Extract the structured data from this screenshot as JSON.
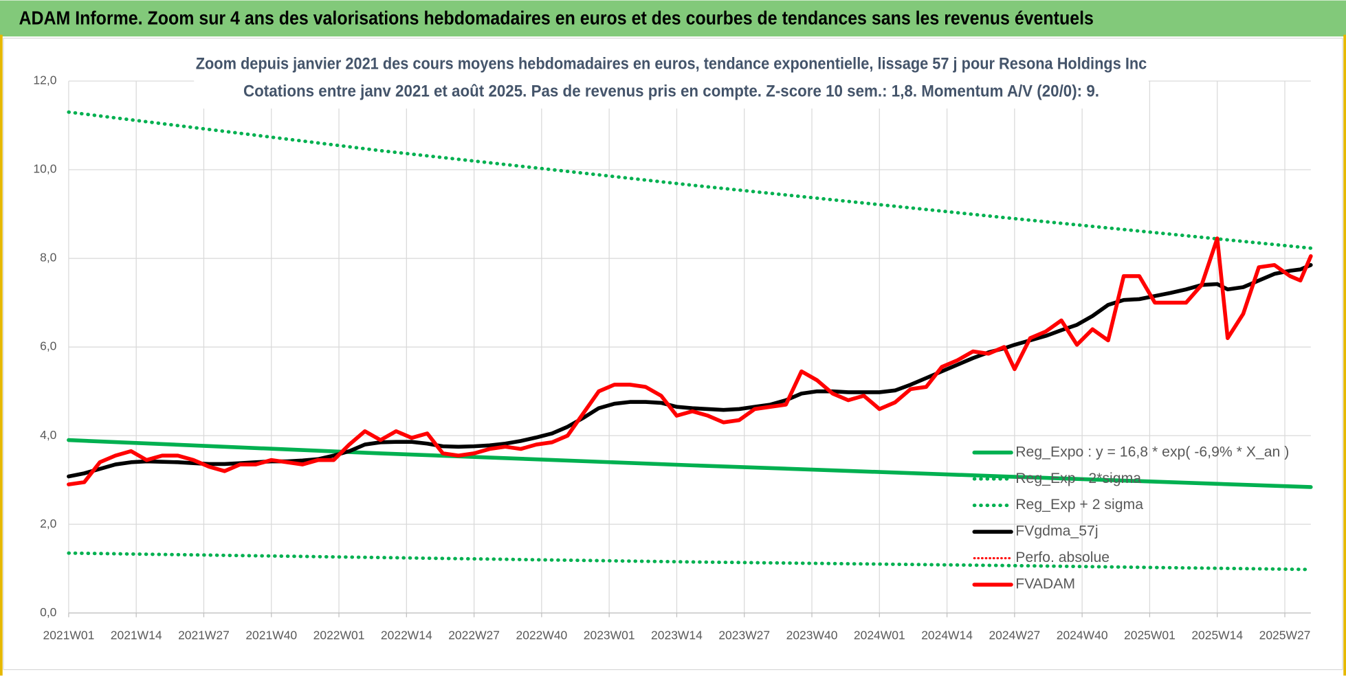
{
  "header": {
    "title": "ADAM Informe. Zoom sur 4 ans des valorisations hebdomadaires en euros et des courbes de tendances sans les revenus éventuels"
  },
  "chart_data": {
    "type": "line",
    "title": "Zoom depuis janvier 2021 des cours moyens hebdomadaires en euros, tendance exponentielle, lissage 57 j pour Resona Holdings Inc",
    "subtitle": "Cotations entre janv 2021 et août 2025.  Pas de revenus pris en compte. Z-score 10 sem.: 1,8. Momentum A/V (20/0): 9.",
    "x": [
      0,
      3,
      6,
      9,
      12,
      15,
      18,
      21,
      24,
      27,
      30,
      33,
      36,
      39,
      42,
      45,
      48,
      51,
      54,
      57,
      60,
      63,
      66,
      69,
      72,
      75,
      78,
      81,
      84,
      87,
      90,
      93,
      96,
      99,
      102,
      105,
      108,
      111,
      114,
      117,
      120,
      123,
      126,
      129,
      132,
      135,
      138,
      141,
      144,
      147,
      150,
      153,
      156,
      159,
      162,
      165,
      168,
      171,
      174,
      177,
      180,
      182,
      185,
      188,
      191,
      194,
      197,
      200,
      203,
      206,
      209,
      212,
      215,
      218,
      221,
      223,
      226,
      229,
      232,
      235,
      237,
      239
    ],
    "xlim": [
      0,
      239
    ],
    "xticks": [
      {
        "value": 0,
        "label": "2021W01"
      },
      {
        "value": 13,
        "label": "2021W14"
      },
      {
        "value": 26,
        "label": "2021W27"
      },
      {
        "value": 39,
        "label": "2021W40"
      },
      {
        "value": 52,
        "label": "2022W01"
      },
      {
        "value": 65,
        "label": "2022W14"
      },
      {
        "value": 78,
        "label": "2022W27"
      },
      {
        "value": 91,
        "label": "2022W40"
      },
      {
        "value": 104,
        "label": "2023W01"
      },
      {
        "value": 117,
        "label": "2023W14"
      },
      {
        "value": 130,
        "label": "2023W27"
      },
      {
        "value": 143,
        "label": "2023W40"
      },
      {
        "value": 156,
        "label": "2024W01"
      },
      {
        "value": 169,
        "label": "2024W14"
      },
      {
        "value": 182,
        "label": "2024W27"
      },
      {
        "value": 195,
        "label": "2024W40"
      },
      {
        "value": 208,
        "label": "2025W01"
      },
      {
        "value": 221,
        "label": "2025W14"
      },
      {
        "value": 234,
        "label": "2025W27"
      }
    ],
    "ylim": [
      0,
      12
    ],
    "yticks": [
      {
        "value": 0,
        "label": "0,0"
      },
      {
        "value": 2,
        "label": "2,0"
      },
      {
        "value": 4,
        "label": "4,0"
      },
      {
        "value": 6,
        "label": "6,0"
      },
      {
        "value": 8,
        "label": "8,0"
      },
      {
        "value": 10,
        "label": "10,0"
      },
      {
        "value": 12,
        "label": "12,0"
      }
    ],
    "grid": true,
    "legend": "lower right",
    "series": [
      {
        "name": "Reg_Expo : y = 16,8 * exp( -6,9% *  X_an )",
        "color": "#00b050",
        "style": "solid",
        "x": [
          0,
          60,
          120,
          180,
          239
        ],
        "values": [
          3.9,
          3.6,
          3.33,
          3.08,
          2.84
        ]
      },
      {
        "name": "Reg_Exp - 2*sigma",
        "color": "#00b050",
        "style": "dotted",
        "x": [
          0,
          60,
          120,
          180,
          239
        ],
        "values": [
          1.35,
          1.25,
          1.15,
          1.07,
          0.98
        ]
      },
      {
        "name": "Reg_Exp + 2 sigma",
        "color": "#00b050",
        "style": "dotted",
        "x": [
          0,
          60,
          120,
          180,
          239
        ],
        "values": [
          11.3,
          10.43,
          9.65,
          8.92,
          8.23
        ]
      },
      {
        "name": "FVgdma_57j",
        "color": "#000000",
        "style": "solid",
        "values": [
          3.08,
          3.15,
          3.25,
          3.35,
          3.4,
          3.42,
          3.41,
          3.4,
          3.38,
          3.36,
          3.36,
          3.38,
          3.4,
          3.42,
          3.42,
          3.44,
          3.47,
          3.55,
          3.65,
          3.8,
          3.85,
          3.86,
          3.86,
          3.82,
          3.76,
          3.75,
          3.76,
          3.78,
          3.82,
          3.88,
          3.96,
          4.05,
          4.2,
          4.4,
          4.62,
          4.72,
          4.76,
          4.76,
          4.74,
          4.65,
          4.62,
          4.6,
          4.58,
          4.6,
          4.65,
          4.7,
          4.8,
          4.95,
          5.0,
          5.0,
          4.98,
          4.98,
          4.98,
          5.02,
          5.15,
          5.3,
          5.45,
          5.6,
          5.75,
          5.88,
          5.97,
          6.05,
          6.15,
          6.25,
          6.38,
          6.5,
          6.7,
          6.95,
          7.06,
          7.08,
          7.15,
          7.22,
          7.3,
          7.4,
          7.42,
          7.3,
          7.35,
          7.5,
          7.65,
          7.72,
          7.75,
          7.85
        ]
      },
      {
        "name": "Perfo. absolue",
        "color": "#ff0000",
        "style": "dotted-thin",
        "values": [
          2.9,
          2.95,
          3.4,
          3.55,
          3.65,
          3.45,
          3.55,
          3.55,
          3.45,
          3.3,
          3.2,
          3.35,
          3.35,
          3.45,
          3.4,
          3.35,
          3.45,
          3.45,
          3.8,
          4.1,
          3.9,
          4.1,
          3.95,
          4.05,
          3.6,
          3.55,
          3.6,
          3.7,
          3.75,
          3.7,
          3.8,
          3.85,
          4.0,
          4.5,
          5.0,
          5.15,
          5.15,
          5.1,
          4.9,
          4.45,
          4.55,
          4.45,
          4.3,
          4.35,
          4.6,
          4.65,
          4.7,
          5.45,
          5.25,
          4.95,
          4.8,
          4.9,
          4.6,
          4.75,
          5.05,
          5.1,
          5.55,
          5.7,
          5.9,
          5.85,
          6.0,
          5.5,
          6.2,
          6.35,
          6.6,
          6.05,
          6.4,
          6.15,
          7.6,
          7.6,
          7.0,
          7.0,
          7.0,
          7.4,
          8.45,
          6.2,
          6.75,
          7.8,
          7.85,
          7.6,
          7.5,
          8.05
        ]
      },
      {
        "name": "FVADAM",
        "color": "#ff0000",
        "style": "solid",
        "values": [
          2.9,
          2.95,
          3.4,
          3.55,
          3.65,
          3.45,
          3.55,
          3.55,
          3.45,
          3.3,
          3.2,
          3.35,
          3.35,
          3.45,
          3.4,
          3.35,
          3.45,
          3.45,
          3.8,
          4.1,
          3.9,
          4.1,
          3.95,
          4.05,
          3.6,
          3.55,
          3.6,
          3.7,
          3.75,
          3.7,
          3.8,
          3.85,
          4.0,
          4.5,
          5.0,
          5.15,
          5.15,
          5.1,
          4.9,
          4.45,
          4.55,
          4.45,
          4.3,
          4.35,
          4.6,
          4.65,
          4.7,
          5.45,
          5.25,
          4.95,
          4.8,
          4.9,
          4.6,
          4.75,
          5.05,
          5.1,
          5.55,
          5.7,
          5.9,
          5.85,
          6.0,
          5.5,
          6.2,
          6.35,
          6.6,
          6.05,
          6.4,
          6.15,
          7.6,
          7.6,
          7.0,
          7.0,
          7.0,
          7.4,
          8.45,
          6.2,
          6.75,
          7.8,
          7.85,
          7.6,
          7.5,
          8.05
        ]
      }
    ]
  }
}
